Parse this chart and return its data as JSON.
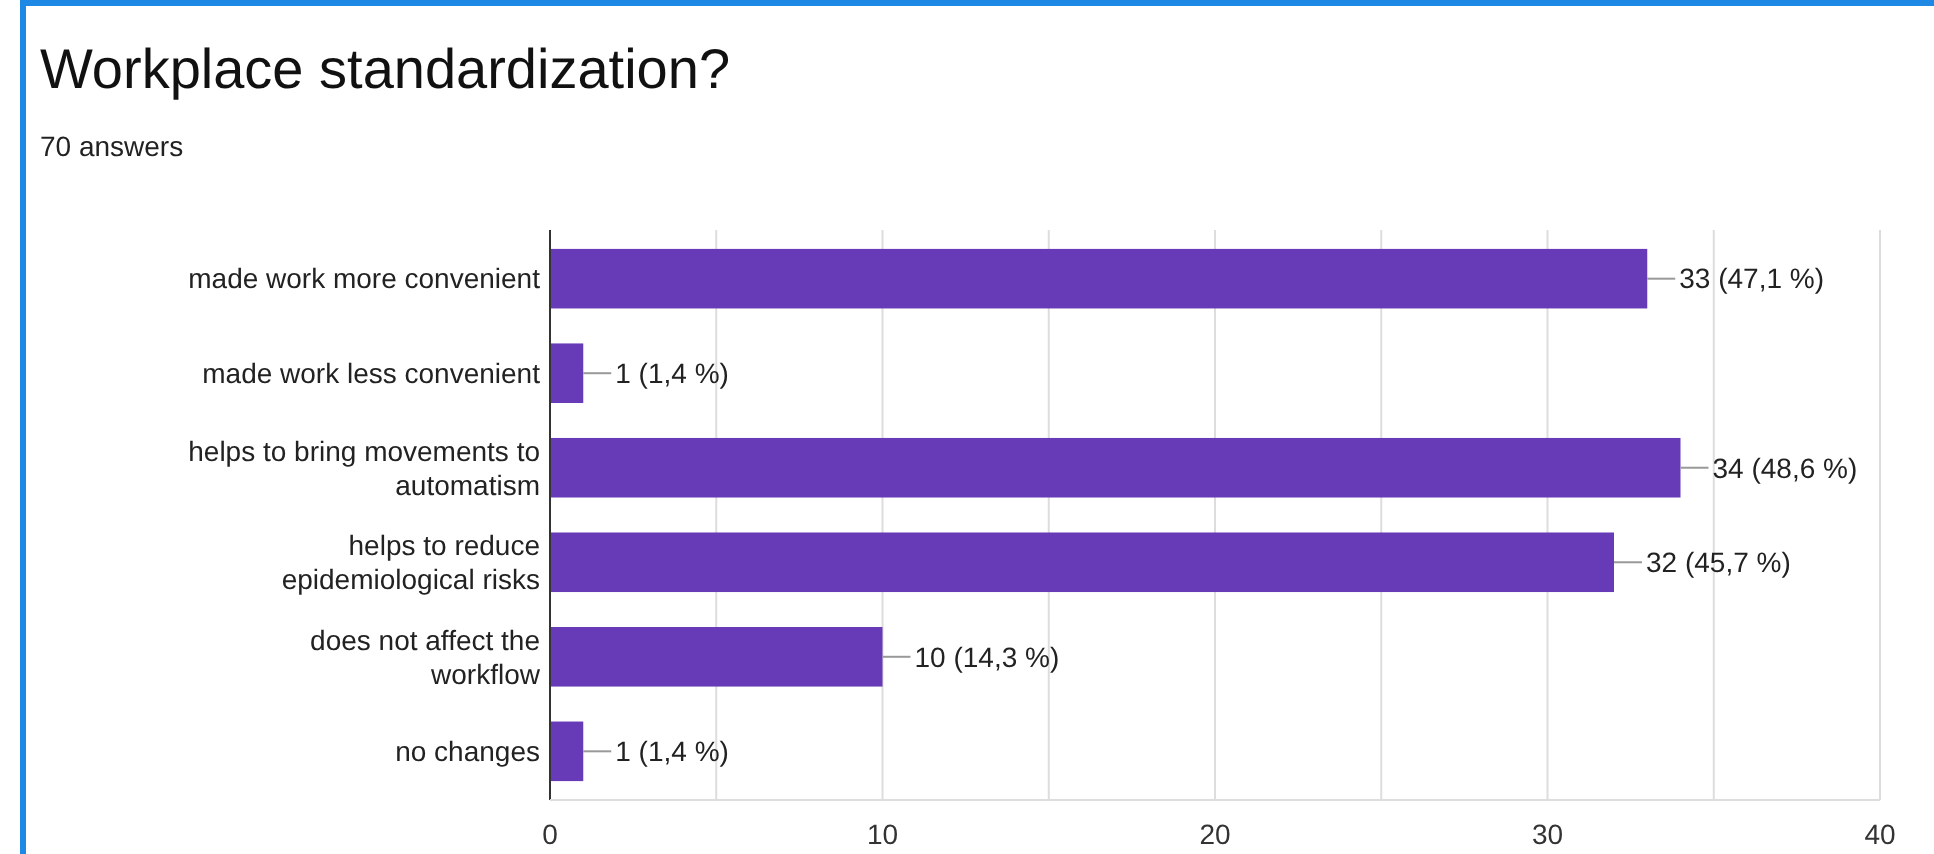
{
  "chart_data": {
    "type": "bar",
    "orientation": "horizontal",
    "title": "Workplace standardization?",
    "subtitle": "70 answers",
    "categories": [
      "made work more convenient",
      "made work less convenient",
      "helps to bring movements to automatism",
      "helps to reduce epidemiological risks",
      "does not affect the workflow",
      "no changes"
    ],
    "values": [
      33,
      1,
      34,
      32,
      10,
      1
    ],
    "color": "#673ab7",
    "value_labels": [
      "33 (47,1 %)",
      "1 (1,4 %)",
      "34 (48,6 %)",
      "32 (45,7 %)",
      "10 (14,3 %)",
      "1 (1,4 %)"
    ],
    "xlim": [
      0,
      40
    ],
    "xticks": [
      0,
      {
        "value": 5,
        "label": null
      },
      10,
      {
        "value": 15,
        "label": null
      },
      20,
      {
        "value": 25,
        "label": null
      },
      30,
      {
        "value": 35,
        "label": null
      },
      40
    ],
    "grid": "x"
  }
}
